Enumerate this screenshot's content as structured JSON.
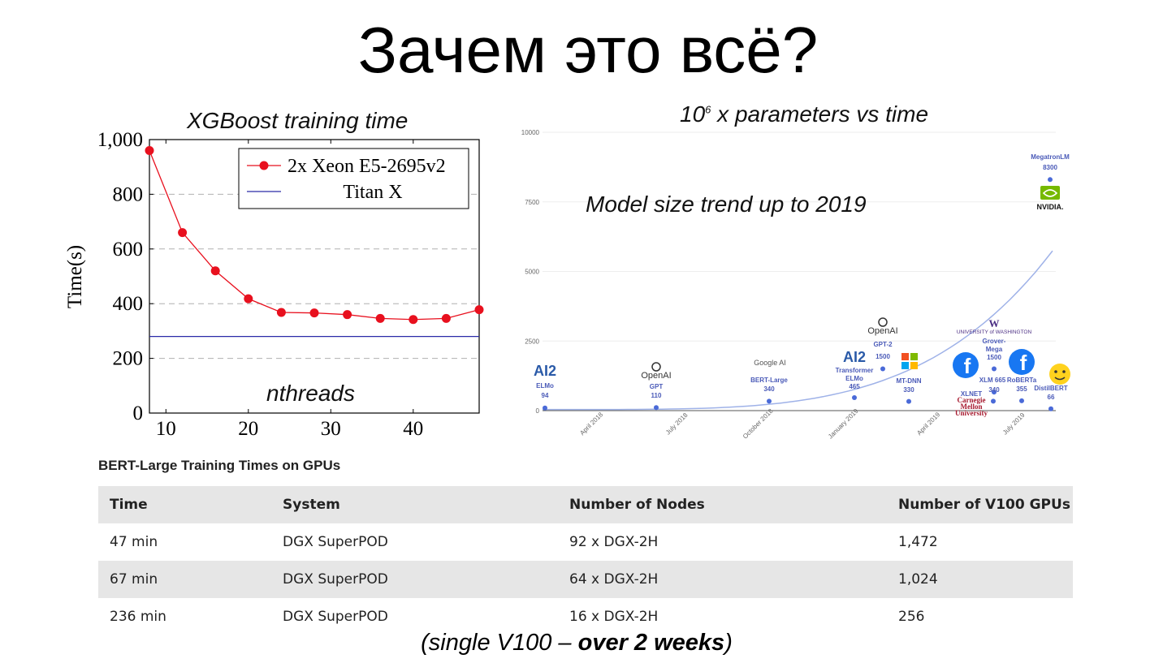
{
  "slide": {
    "title": "Зачем это всё?",
    "xgb_caption": "XGBoost training time",
    "xgb_xcaption": "nthreads",
    "trend_caption_base": "10",
    "trend_caption_exp": "6",
    "trend_caption_rest": " x parameters vs time",
    "trend_subcaption": "Model size trend up to 2019",
    "footnote_pre": "(single V100 – ",
    "footnote_bold": "over 2 weeks",
    "footnote_post": ")"
  },
  "chart_data": [
    {
      "type": "line",
      "title": "XGBoost training time",
      "xlabel": "nthreads",
      "ylabel": "Time(s)",
      "xlim": [
        8,
        48
      ],
      "ylim": [
        0,
        1000
      ],
      "xticks": [
        10,
        20,
        30,
        40
      ],
      "yticks": [
        0,
        200,
        400,
        600,
        800,
        1000
      ],
      "ytick_labels": [
        "0",
        "200",
        "400",
        "600",
        "800",
        "1,000"
      ],
      "grid": "horizontal dashed",
      "legend_position": "top-right",
      "series": [
        {
          "name": "2x Xeon E5-2695v2",
          "color": "#e8101e",
          "x": [
            8,
            12,
            16,
            20,
            24,
            28,
            32,
            36,
            40,
            44,
            48
          ],
          "y": [
            960,
            660,
            520,
            418,
            368,
            366,
            360,
            346,
            342,
            346,
            378
          ]
        },
        {
          "name": "Titan X",
          "color": "#2a2aa8",
          "x": [
            8,
            48
          ],
          "y": [
            280,
            280
          ]
        }
      ]
    },
    {
      "type": "scatter",
      "title": "Model size trend up to 2019",
      "yticks": [
        0,
        2500,
        5000,
        7500,
        10000
      ],
      "ylim": [
        0,
        10000
      ],
      "xticks": [
        "April 2018",
        "July 2018",
        "October 2018",
        "January 2019",
        "April 2019",
        "July 2019"
      ],
      "trend_color": "#9fb2e8",
      "point_color": "#4a6ad8",
      "points": [
        {
          "name": "ELMo",
          "value": 94,
          "org": "AI2"
        },
        {
          "name": "GPT",
          "value": 110,
          "org": "OpenAI"
        },
        {
          "name": "BERT-Large",
          "value": 340,
          "org": "Google AI"
        },
        {
          "name": "Transformer ELMo",
          "value": 465,
          "org": "AI2"
        },
        {
          "name": "GPT-2",
          "value": 1500,
          "org": "OpenAI"
        },
        {
          "name": "MT-DNN",
          "value": 330,
          "org": "Microsoft"
        },
        {
          "name": "XLM",
          "value": 665,
          "org": "Facebook"
        },
        {
          "name": "XLNET",
          "value": 340,
          "org": "Carnegie Mellon University"
        },
        {
          "name": "Grover-Mega",
          "value": 1500,
          "org": "University of Washington"
        },
        {
          "name": "RoBERTa",
          "value": 355,
          "org": "Facebook"
        },
        {
          "name": "DistilBERT",
          "value": 66,
          "org": "Hugging Face"
        },
        {
          "name": "MegatronLM",
          "value": 8300,
          "org": "NVIDIA"
        }
      ],
      "logos": {
        "ai2": "AI2",
        "openai": "OpenAI",
        "google": "Google AI",
        "nvidia": "NVIDIA.",
        "uw_line1": "W",
        "uw_line2": "UNIVERSITY of WASHINGTON",
        "cmu": [
          "Carnegie",
          "Mellon",
          "University"
        ],
        "fb": "f"
      }
    }
  ],
  "table": {
    "title": "BERT-Large Training Times on GPUs",
    "headers": [
      "Time",
      "System",
      "Number of Nodes",
      "Number of V100 GPUs"
    ],
    "rows": [
      [
        "47 min",
        "DGX SuperPOD",
        "92 x DGX-2H",
        "1,472"
      ],
      [
        "67 min",
        "DGX SuperPOD",
        "64 x DGX-2H",
        "1,024"
      ],
      [
        "236 min",
        "DGX SuperPOD",
        "16 x DGX-2H",
        "256"
      ]
    ]
  }
}
